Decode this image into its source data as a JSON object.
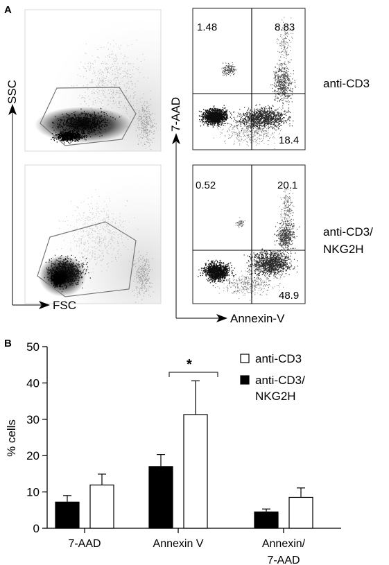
{
  "panel_a": {
    "letter": "A",
    "scatter_x_label": "FSC",
    "scatter_y_label": "SSC",
    "annexin_x_label": "Annexin-V",
    "annexin_y_label": "7-AAD",
    "conditions": [
      {
        "label": "anti-CD3",
        "quadrants": {
          "upper_left": "1.48",
          "upper_right": "8.83",
          "lower_right": "18.4"
        }
      },
      {
        "label_lines": [
          "anti-CD3/",
          "NKG2H"
        ],
        "quadrants": {
          "upper_left": "0.52",
          "upper_right": "20.1",
          "lower_right": "48.9"
        }
      }
    ]
  },
  "panel_b": {
    "letter": "B"
  },
  "chart_data": {
    "type": "bar",
    "title": "",
    "xlabel": "",
    "ylabel": "% cells",
    "ylim": [
      0,
      50
    ],
    "yticks": [
      0,
      10,
      20,
      30,
      40,
      50
    ],
    "categories": [
      "7-AAD",
      "Annexin V",
      "Annexin/7-AAD"
    ],
    "category_lines": [
      [
        "7-AAD"
      ],
      [
        "Annexin V"
      ],
      [
        "Annexin/",
        "7-AAD"
      ]
    ],
    "series": [
      {
        "name": "anti-CD3/\nNKG2H",
        "legend_lines": [
          "anti-CD3/",
          "NKG2H"
        ],
        "fill": "#000000",
        "values": [
          7.2,
          17.0,
          4.5
        ],
        "error": [
          1.8,
          3.3,
          0.8
        ]
      },
      {
        "name": "anti-CD3",
        "legend_lines": [
          "anti-CD3"
        ],
        "fill": "#ffffff",
        "values": [
          11.9,
          31.3,
          8.5
        ],
        "error": [
          3.0,
          9.3,
          2.6
        ]
      }
    ],
    "legend_order": [
      1,
      0
    ],
    "legend_position": "top-right",
    "significance": [
      {
        "category": "Annexin V",
        "text": "*"
      }
    ],
    "grid": false
  },
  "colors": {
    "ink": "#000000",
    "gate": "#888888",
    "background": "#ffffff"
  }
}
